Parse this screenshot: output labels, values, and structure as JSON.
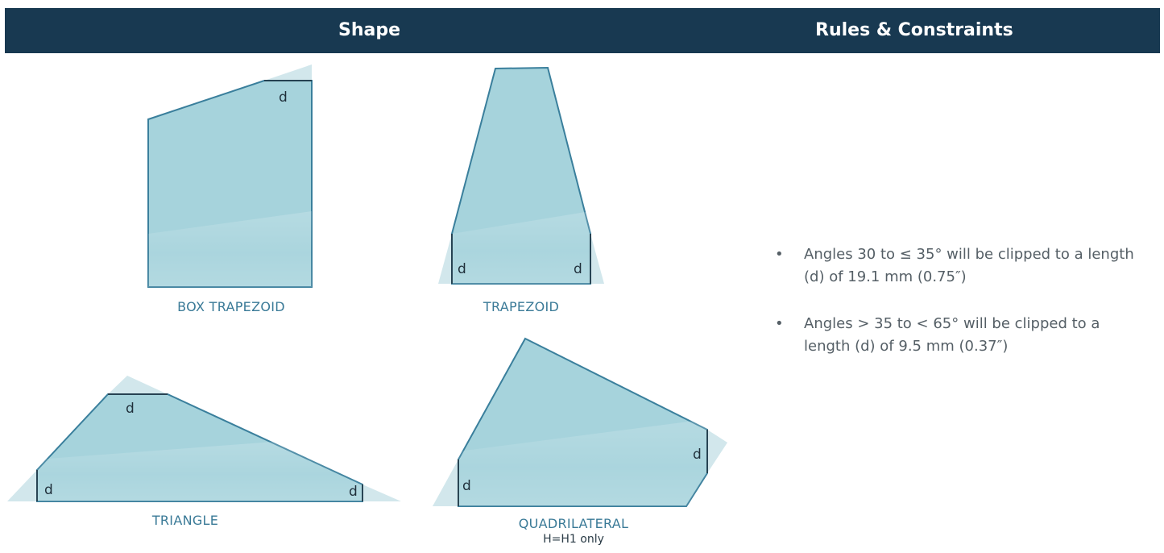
{
  "header": {
    "shape_title": "Shape",
    "rules_title": "Rules & Constraints"
  },
  "shapes": [
    {
      "label": "BOX TRAPEZOID",
      "note": ""
    },
    {
      "label": "TRAPEZOID",
      "note": ""
    },
    {
      "label": "TRIANGLE",
      "note": ""
    },
    {
      "label": "QUADRILATERAL",
      "note": "H=H1 only"
    }
  ],
  "clip_label": "d",
  "rules": [
    "Angles 30 to ≤ 35° will be clipped to a length (d) of 19.1 mm (0.75″)",
    "Angles > 35 to < 65° will be clipped to a length (d) of 9.5 mm (0.37″)"
  ],
  "colors": {
    "header_bg": "#183951",
    "shape_fill": "#a6d3dc",
    "shape_stroke": "#3a7f9c",
    "clipped_corner": "#d2e7ec",
    "label_color": "#3a7a97"
  }
}
